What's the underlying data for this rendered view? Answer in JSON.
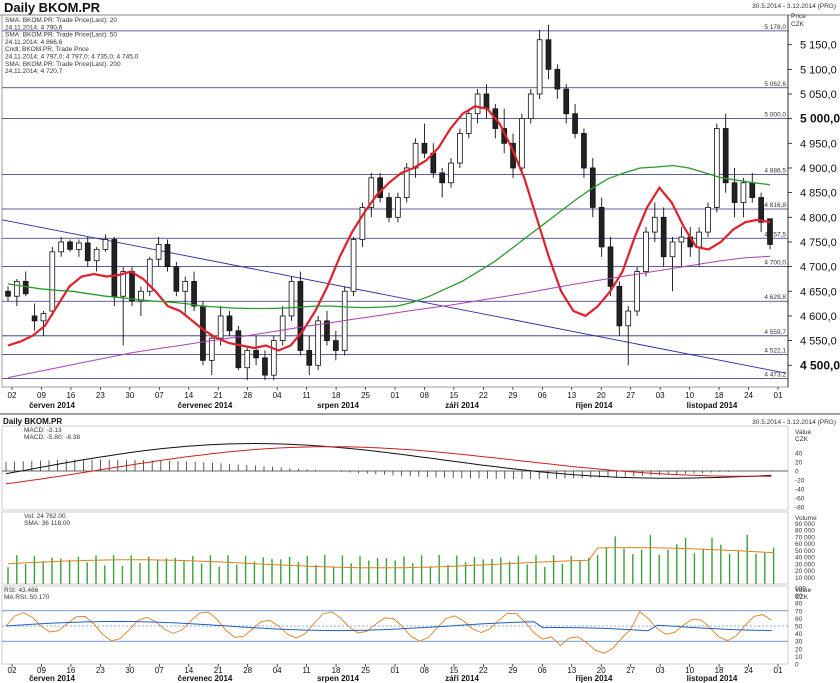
{
  "header": {
    "title": "Daily BKOM.PR",
    "range": "30.5.2014 - 3.12.2014 (PRG)"
  },
  "main_legend": [
    {
      "text": "SMA: BKOM.PR: Trade Price(Last): 20",
      "color": "#e0202a"
    },
    {
      "text": "24.11.2014; 4 790,6",
      "color": "#e0202a"
    },
    {
      "text": "SMA: BKOM.PR: Trade Price(Last): 50",
      "color": "#2a9a2a"
    },
    {
      "text": "24.11.2014; 4 866,6",
      "color": "#2a9a2a"
    },
    {
      "text": "Cndl; BKOM.PR; Trade Price",
      "color": "#111111"
    },
    {
      "text": "24.11.2014; 4 797,0; 4 797,0; 4 735,0; 4 745,0",
      "color": "#111111"
    },
    {
      "text": "SMA: BKOM.PR: Trade Price(Last): 200",
      "color": "#b040b0"
    },
    {
      "text": "24.11.2014; 4 720,7",
      "color": "#b040b0"
    }
  ],
  "price_axis": {
    "caption1": "Price",
    "caption2": "CZK",
    "ticks": [
      "5 150,0",
      "5 100,0",
      "5 050,0",
      "5 000,0",
      "4 950,0",
      "4 900,0",
      "4 850,0",
      "4 800,0",
      "4 750,0",
      "4 700,0",
      "4 650,0",
      "4 600,0",
      "4 550,0",
      "4 500,0"
    ],
    "bold_ticks": [
      "5 000,0",
      "4 500,0"
    ]
  },
  "hlines": [
    "5 178,0",
    "5 062,6",
    "5 000,0",
    "4 886,5",
    "4 816,8",
    "4 757,5",
    "4 700,0",
    "4 629,8",
    "4 559,7",
    "4 522,1",
    "4 473,2"
  ],
  "x_axis": {
    "days": [
      "02",
      "09",
      "16",
      "23",
      "30",
      "07",
      "14",
      "21",
      "28",
      "04",
      "11",
      "18",
      "25",
      "01",
      "08",
      "15",
      "22",
      "29",
      "06",
      "13",
      "20",
      "27",
      "03",
      "10",
      "18",
      "24",
      "01"
    ],
    "months": [
      "červen 2014",
      "červenec 2014",
      "srpen 2014",
      "září 2014",
      "říjen 2014",
      "listopad 2014"
    ]
  },
  "macd_panel": {
    "title": "Daily BKOM.PR",
    "range": "30.5.2014 - 3.12.2014 (PRG)",
    "legend": [
      "MACD: -3.13",
      "MACD: -5.80; -8.38"
    ],
    "axis_caption": [
      "Value",
      "CZK"
    ],
    "ticks": [
      "40",
      "20",
      "0",
      "-20",
      "-40",
      "-60",
      "-80"
    ]
  },
  "volume_panel": {
    "legend": [
      "Vol: 24 762.00",
      "SMA: 36 118.00"
    ],
    "axis_caption": "Volume",
    "ticks": [
      "90 000",
      "80 000",
      "70 000",
      "60 000",
      "50 000",
      "40 000",
      "30 000",
      "20 000",
      "10 000"
    ]
  },
  "rsi_panel": {
    "legend": [
      "RSI: 43.466",
      "MA RSI: 50.170"
    ],
    "axis_caption": [
      "Value",
      "CZK"
    ],
    "ticks": [
      "100",
      "90",
      "80",
      "70",
      "60",
      "50",
      "40",
      "30",
      "20",
      "10",
      "0"
    ]
  },
  "chart_data": {
    "type": "candlestick",
    "title": "Daily BKOM.PR",
    "ylabel": "Price CZK",
    "ylim": [
      4460,
      5200
    ],
    "series": [
      {
        "name": "SMA: BKOM.PR: Trade Price(Last): 20",
        "last": 4790.6,
        "color": "#e0202a",
        "points": [
          4540,
          4548,
          4560,
          4580,
          4620,
          4660,
          4680,
          4685,
          4680,
          4683,
          4690,
          4675,
          4650,
          4620,
          4610,
          4590,
          4570,
          4555,
          4545,
          4540,
          4535,
          4540,
          4530,
          4540,
          4570,
          4610,
          4660,
          4720,
          4770,
          4810,
          4845,
          4870,
          4890,
          4900,
          4915,
          4940,
          4980,
          5010,
          5025,
          5020,
          4990,
          4940,
          4880,
          4800,
          4720,
          4650,
          4610,
          4600,
          4620,
          4650,
          4690,
          4760,
          4820,
          4860,
          4830,
          4780,
          4740,
          4735,
          4750,
          4775,
          4790,
          4795,
          4790
        ]
      },
      {
        "name": "SMA: BKOM.PR: Trade Price(Last): 50",
        "last": 4866.6,
        "color": "#2a9a2a",
        "points": [
          4665,
          4660,
          4655,
          4652,
          4650,
          4645,
          4640,
          4637,
          4633,
          4630,
          4628,
          4625,
          4620,
          4618,
          4616,
          4615,
          4615,
          4616,
          4618,
          4620,
          4620,
          4618,
          4617,
          4618,
          4620,
          4628,
          4640,
          4655,
          4670,
          4690,
          4710,
          4735,
          4760,
          4785,
          4810,
          4835,
          4858,
          4878,
          4890,
          4900,
          4902,
          4905,
          4900,
          4890,
          4880,
          4875,
          4870,
          4866
        ]
      },
      {
        "name": "SMA: BKOM.PR: Trade Price(Last): 200",
        "last": 4720.7,
        "color": "#b040b0",
        "points": [
          4475,
          4485,
          4495,
          4505,
          4515,
          4525,
          4533,
          4540,
          4548,
          4555,
          4562,
          4570,
          4578,
          4585,
          4593,
          4600,
          4608,
          4615,
          4622,
          4630,
          4638,
          4646,
          4655,
          4664,
          4672,
          4680,
          4688,
          4696,
          4704,
          4712,
          4718,
          4721
        ]
      }
    ],
    "last_candle": {
      "date": "24.11.2014",
      "open": 4797.0,
      "high": 4797.0,
      "low": 4735.0,
      "close": 4745.0
    },
    "trendline": {
      "start": 4795,
      "end": 4484
    },
    "hlines": [
      5178.0,
      5062.6,
      5000.0,
      4886.5,
      4816.8,
      4757.5,
      4700.0,
      4629.8,
      4559.7,
      4522.1,
      4473.2
    ],
    "candles": [
      [
        4650,
        4660,
        4630,
        4640
      ],
      [
        4640,
        4675,
        4620,
        4670
      ],
      [
        4670,
        4690,
        4640,
        4645
      ],
      [
        4600,
        4625,
        4570,
        4590
      ],
      [
        4590,
        4610,
        4560,
        4605
      ],
      [
        4610,
        4740,
        4600,
        4730
      ],
      [
        4730,
        4760,
        4720,
        4750
      ],
      [
        4750,
        4755,
        4730,
        4735
      ],
      [
        4735,
        4755,
        4720,
        4748
      ],
      [
        4748,
        4760,
        4700,
        4712
      ],
      [
        4712,
        4740,
        4690,
        4735
      ],
      [
        4735,
        4765,
        4730,
        4755
      ],
      [
        4755,
        4760,
        4620,
        4640
      ],
      [
        4640,
        4700,
        4540,
        4690
      ],
      [
        4690,
        4700,
        4620,
        4630
      ],
      [
        4630,
        4660,
        4600,
        4650
      ],
      [
        4650,
        4720,
        4640,
        4715
      ],
      [
        4715,
        4760,
        4700,
        4745
      ],
      [
        4745,
        4755,
        4690,
        4700
      ],
      [
        4700,
        4710,
        4640,
        4650
      ],
      [
        4650,
        4680,
        4600,
        4670
      ],
      [
        4670,
        4690,
        4610,
        4620
      ],
      [
        4620,
        4630,
        4500,
        4510
      ],
      [
        4510,
        4560,
        4480,
        4555
      ],
      [
        4555,
        4620,
        4540,
        4600
      ],
      [
        4600,
        4610,
        4560,
        4570
      ],
      [
        4570,
        4580,
        4490,
        4495
      ],
      [
        4495,
        4540,
        4470,
        4530
      ],
      [
        4530,
        4560,
        4500,
        4515
      ],
      [
        4515,
        4530,
        4470,
        4480
      ],
      [
        4480,
        4560,
        4470,
        4550
      ],
      [
        4550,
        4620,
        4540,
        4600
      ],
      [
        4600,
        4680,
        4590,
        4670
      ],
      [
        4670,
        4690,
        4520,
        4530
      ],
      [
        4530,
        4560,
        4480,
        4500
      ],
      [
        4500,
        4600,
        4490,
        4590
      ],
      [
        4590,
        4610,
        4540,
        4550
      ],
      [
        4550,
        4570,
        4510,
        4530
      ],
      [
        4530,
        4660,
        4520,
        4650
      ],
      [
        4650,
        4760,
        4640,
        4755
      ],
      [
        4755,
        4830,
        4740,
        4820
      ],
      [
        4820,
        4890,
        4800,
        4880
      ],
      [
        4880,
        4890,
        4830,
        4840
      ],
      [
        4840,
        4850,
        4790,
        4800
      ],
      [
        4800,
        4850,
        4790,
        4840
      ],
      [
        4840,
        4910,
        4830,
        4900
      ],
      [
        4900,
        4960,
        4880,
        4950
      ],
      [
        4950,
        4990,
        4920,
        4930
      ],
      [
        4930,
        4950,
        4880,
        4890
      ],
      [
        4890,
        4900,
        4840,
        4870
      ],
      [
        4870,
        4920,
        4860,
        4910
      ],
      [
        4910,
        4980,
        4900,
        4970
      ],
      [
        4970,
        5020,
        4960,
        5010
      ],
      [
        5010,
        5060,
        4990,
        5050
      ],
      [
        5050,
        5070,
        5000,
        5020
      ],
      [
        5020,
        5030,
        4960,
        4980
      ],
      [
        4980,
        5020,
        4930,
        4950
      ],
      [
        4950,
        4970,
        4880,
        4900
      ],
      [
        4900,
        5010,
        4890,
        5000
      ],
      [
        5000,
        5060,
        4990,
        5050
      ],
      [
        5050,
        5180,
        5040,
        5160
      ],
      [
        5160,
        5190,
        5080,
        5100
      ],
      [
        5100,
        5110,
        5040,
        5060
      ],
      [
        5060,
        5070,
        4990,
        5010
      ],
      [
        5010,
        5030,
        4960,
        4970
      ],
      [
        4970,
        4980,
        4880,
        4900
      ],
      [
        4900,
        4920,
        4800,
        4820
      ],
      [
        4820,
        4840,
        4720,
        4740
      ],
      [
        4740,
        4760,
        4640,
        4660
      ],
      [
        4660,
        4670,
        4560,
        4580
      ],
      [
        4580,
        4620,
        4500,
        4610
      ],
      [
        4610,
        4700,
        4600,
        4690
      ],
      [
        4690,
        4780,
        4680,
        4770
      ],
      [
        4770,
        4830,
        4750,
        4800
      ],
      [
        4800,
        4820,
        4700,
        4720
      ],
      [
        4720,
        4760,
        4650,
        4750
      ],
      [
        4750,
        4780,
        4700,
        4760
      ],
      [
        4760,
        4780,
        4720,
        4740
      ],
      [
        4740,
        4780,
        4700,
        4770
      ],
      [
        4770,
        4830,
        4760,
        4820
      ],
      [
        4820,
        4990,
        4810,
        4980
      ],
      [
        4980,
        5010,
        4850,
        4870
      ],
      [
        4870,
        4900,
        4800,
        4830
      ],
      [
        4830,
        4880,
        4800,
        4870
      ],
      [
        4870,
        4890,
        4830,
        4840
      ],
      [
        4840,
        4850,
        4770,
        4790
      ],
      [
        4797,
        4797,
        4735,
        4745
      ]
    ]
  }
}
